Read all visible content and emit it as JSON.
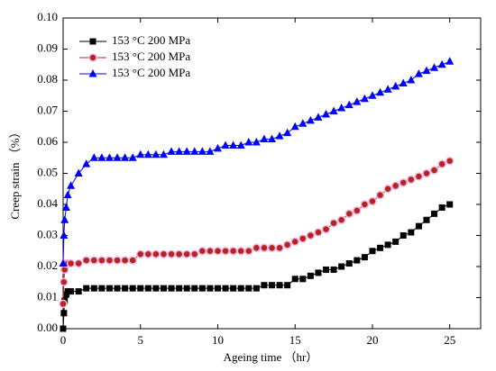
{
  "chart_data": {
    "type": "line",
    "x_label": "Ageing time （hr）",
    "y_label": "Creep strain （%）",
    "x": [
      0,
      0.05,
      0.1,
      0.2,
      0.3,
      0.5,
      1,
      1.5,
      2,
      2.5,
      3,
      3.5,
      4,
      4.5,
      5,
      5.5,
      6,
      6.5,
      7,
      7.5,
      8,
      8.5,
      9,
      9.5,
      10,
      10.5,
      11,
      11.5,
      12,
      12.5,
      13,
      13.5,
      14,
      14.5,
      15,
      15.5,
      16,
      16.5,
      17,
      17.5,
      18,
      18.5,
      19,
      19.5,
      20,
      20.5,
      21,
      21.5,
      22,
      22.5,
      23,
      23.5,
      24,
      24.5,
      25
    ],
    "series": [
      {
        "name": "153 °C 200 MPa",
        "color": "#000000",
        "marker": "square",
        "values": [
          0,
          0.005,
          0.009,
          0.011,
          0.012,
          0.012,
          0.012,
          0.013,
          0.013,
          0.013,
          0.013,
          0.013,
          0.013,
          0.013,
          0.013,
          0.013,
          0.013,
          0.013,
          0.013,
          0.013,
          0.013,
          0.013,
          0.013,
          0.013,
          0.013,
          0.013,
          0.013,
          0.013,
          0.013,
          0.013,
          0.014,
          0.014,
          0.014,
          0.014,
          0.016,
          0.016,
          0.017,
          0.018,
          0.019,
          0.019,
          0.02,
          0.021,
          0.022,
          0.023,
          0.025,
          0.026,
          0.027,
          0.028,
          0.03,
          0.031,
          0.033,
          0.035,
          0.037,
          0.039,
          0.04
        ]
      },
      {
        "name": "153 °C 200 MPa",
        "color": "#b3261e",
        "marker": "circle",
        "values": [
          0.008,
          0.015,
          0.019,
          0.021,
          0.021,
          0.021,
          0.021,
          0.022,
          0.022,
          0.022,
          0.022,
          0.022,
          0.022,
          0.022,
          0.024,
          0.024,
          0.024,
          0.024,
          0.024,
          0.024,
          0.024,
          0.024,
          0.025,
          0.025,
          0.025,
          0.025,
          0.025,
          0.025,
          0.025,
          0.026,
          0.026,
          0.026,
          0.026,
          0.027,
          0.028,
          0.029,
          0.03,
          0.031,
          0.032,
          0.034,
          0.035,
          0.037,
          0.038,
          0.04,
          0.041,
          0.043,
          0.045,
          0.046,
          0.047,
          0.048,
          0.049,
          0.05,
          0.051,
          0.053,
          0.054
        ]
      },
      {
        "name": "153 °C 200 MPa",
        "color": "#0000ff",
        "marker": "triangle",
        "values": [
          0.021,
          0.03,
          0.035,
          0.039,
          0.043,
          0.046,
          0.05,
          0.053,
          0.055,
          0.055,
          0.055,
          0.055,
          0.055,
          0.055,
          0.056,
          0.056,
          0.056,
          0.056,
          0.057,
          0.057,
          0.057,
          0.057,
          0.057,
          0.057,
          0.058,
          0.059,
          0.059,
          0.059,
          0.06,
          0.06,
          0.061,
          0.061,
          0.062,
          0.063,
          0.065,
          0.066,
          0.067,
          0.068,
          0.069,
          0.07,
          0.071,
          0.072,
          0.073,
          0.074,
          0.075,
          0.076,
          0.077,
          0.078,
          0.079,
          0.08,
          0.082,
          0.083,
          0.084,
          0.085,
          0.086
        ]
      }
    ],
    "xlim": [
      0,
      27
    ],
    "xticks": [
      0,
      5,
      10,
      15,
      20,
      25
    ],
    "ylim": [
      0,
      0.1
    ],
    "yticks": [
      {
        "value": 0,
        "label": "0.00"
      },
      {
        "value": 0.01,
        "label": "0.01"
      },
      {
        "value": 0.02,
        "label": "0.02"
      },
      {
        "value": 0.03,
        "label": "0.03"
      },
      {
        "value": 0.04,
        "label": "0.04"
      },
      {
        "value": 0.05,
        "label": "0.05"
      },
      {
        "value": 0.06,
        "label": "0.06"
      },
      {
        "value": 0.07,
        "label": "0.07"
      },
      {
        "value": 0.08,
        "label": "0.08"
      },
      {
        "value": 0.09,
        "label": "0.09"
      },
      {
        "value": 0.1,
        "label": "0.10"
      }
    ],
    "legend": "upper left",
    "grid": false
  }
}
